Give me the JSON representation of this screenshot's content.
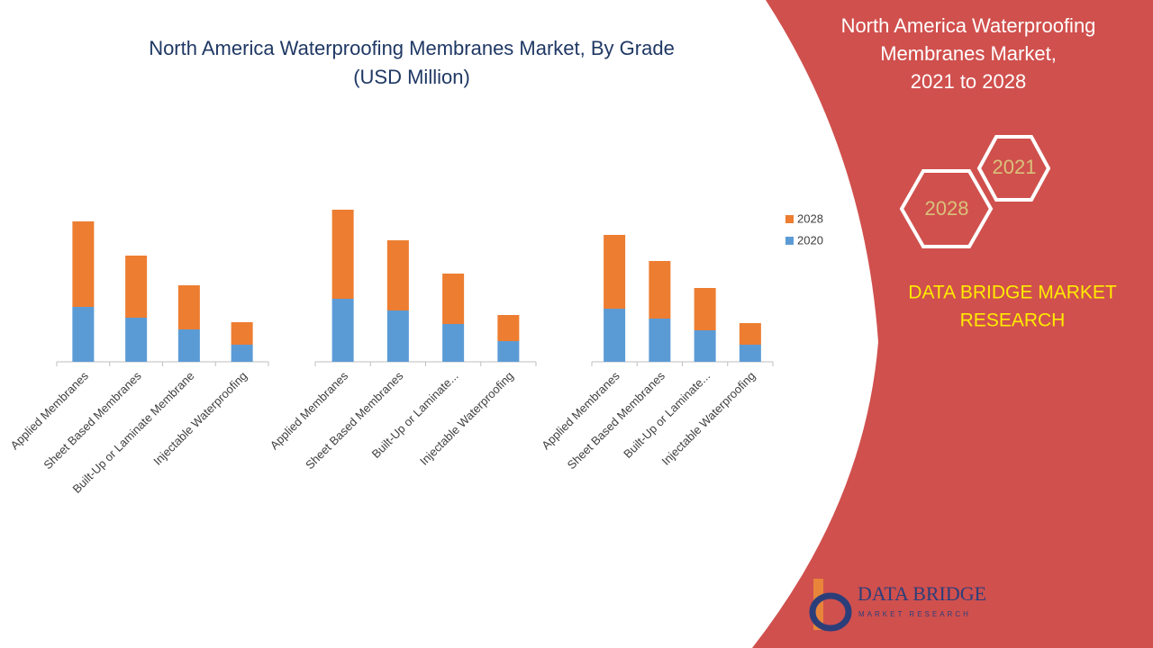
{
  "title": [
    "North America Waterproofing Membranes Market, By Grade",
    "(USD Million)"
  ],
  "legend": [
    {
      "name": "2020",
      "color": "#5b9bd5"
    },
    {
      "name": "2028",
      "color": "#ed7d31"
    }
  ],
  "chart_data": [
    {
      "type": "bar",
      "stacked": true,
      "ylim": [
        0,
        170
      ],
      "categories": [
        "Applied Membranes",
        "Sheet Based Membranes",
        "Built-Up or Laminate Membrane",
        "Injectable Waterproofing"
      ],
      "series": [
        {
          "values": [
            61,
            49,
            36,
            19
          ]
        },
        {
          "values": [
            95,
            69,
            49,
            25
          ]
        }
      ]
    },
    {
      "type": "bar",
      "stacked": true,
      "ylim": [
        0,
        170
      ],
      "categories": [
        "Applied Membranes",
        "Sheet Based Membranes",
        "Built-Up or Laminate...",
        "Injectable Waterproofing"
      ],
      "series": [
        {
          "values": [
            70,
            57,
            42,
            23
          ]
        },
        {
          "values": [
            99,
            78,
            56,
            29
          ]
        }
      ]
    },
    {
      "type": "bar",
      "stacked": true,
      "ylim": [
        0,
        170
      ],
      "categories": [
        "Applied Membranes",
        "Sheet Based Membranes",
        "Built-Up or Laminate...",
        "Injectable Waterproofing"
      ],
      "series": [
        {
          "values": [
            59,
            48,
            35,
            19
          ]
        },
        {
          "values": [
            82,
            64,
            47,
            24
          ]
        }
      ]
    }
  ],
  "panel": {
    "title": [
      "North America Waterproofing",
      "Membranes Market,",
      "2021 to 2028"
    ],
    "hexagons": [
      "2021",
      "2028"
    ],
    "brand": [
      "DATA BRIDGE MARKET",
      "RESEARCH"
    ],
    "logo": [
      "DATA BRIDGE",
      "MARKET RESEARCH"
    ]
  }
}
